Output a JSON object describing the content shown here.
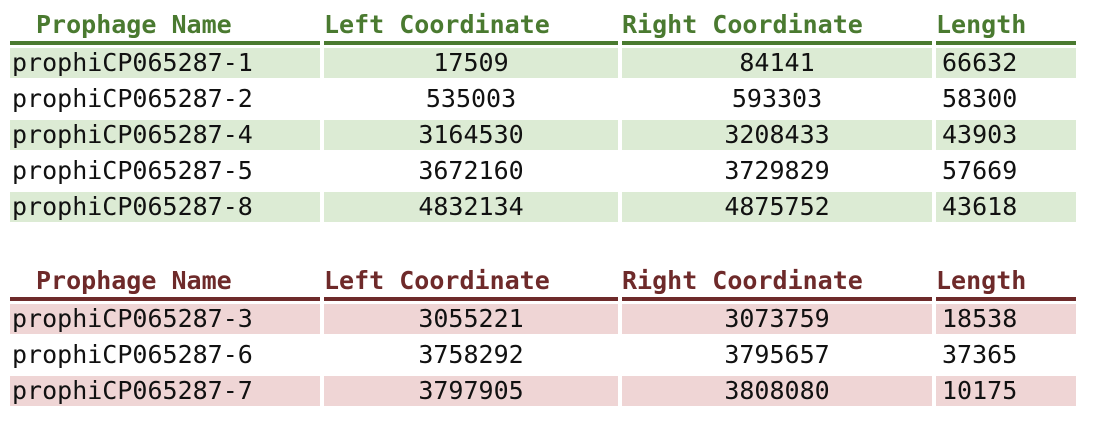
{
  "colors": {
    "green_header": "#4a7a30",
    "green_row_fill": "#dcebd4",
    "red_header": "#6e2a2a",
    "red_row_fill": "#efd5d5"
  },
  "headers": {
    "name": "Prophage Name",
    "left": "Left Coordinate",
    "right": "Right Coordinate",
    "length": "Length"
  },
  "green_table": {
    "rows": [
      {
        "name": "prophiCP065287-1",
        "left": "17509",
        "right": "84141",
        "length": "66632"
      },
      {
        "name": "prophiCP065287-2",
        "left": "535003",
        "right": "593303",
        "length": "58300"
      },
      {
        "name": "prophiCP065287-4",
        "left": "3164530",
        "right": "3208433",
        "length": "43903"
      },
      {
        "name": "prophiCP065287-5",
        "left": "3672160",
        "right": "3729829",
        "length": "57669"
      },
      {
        "name": "prophiCP065287-8",
        "left": "4832134",
        "right": "4875752",
        "length": "43618"
      }
    ]
  },
  "red_table": {
    "rows": [
      {
        "name": "prophiCP065287-3",
        "left": "3055221",
        "right": "3073759",
        "length": "18538"
      },
      {
        "name": "prophiCP065287-6",
        "left": "3758292",
        "right": "3795657",
        "length": "37365"
      },
      {
        "name": "prophiCP065287-7",
        "left": "3797905",
        "right": "3808080",
        "length": "10175"
      }
    ]
  }
}
